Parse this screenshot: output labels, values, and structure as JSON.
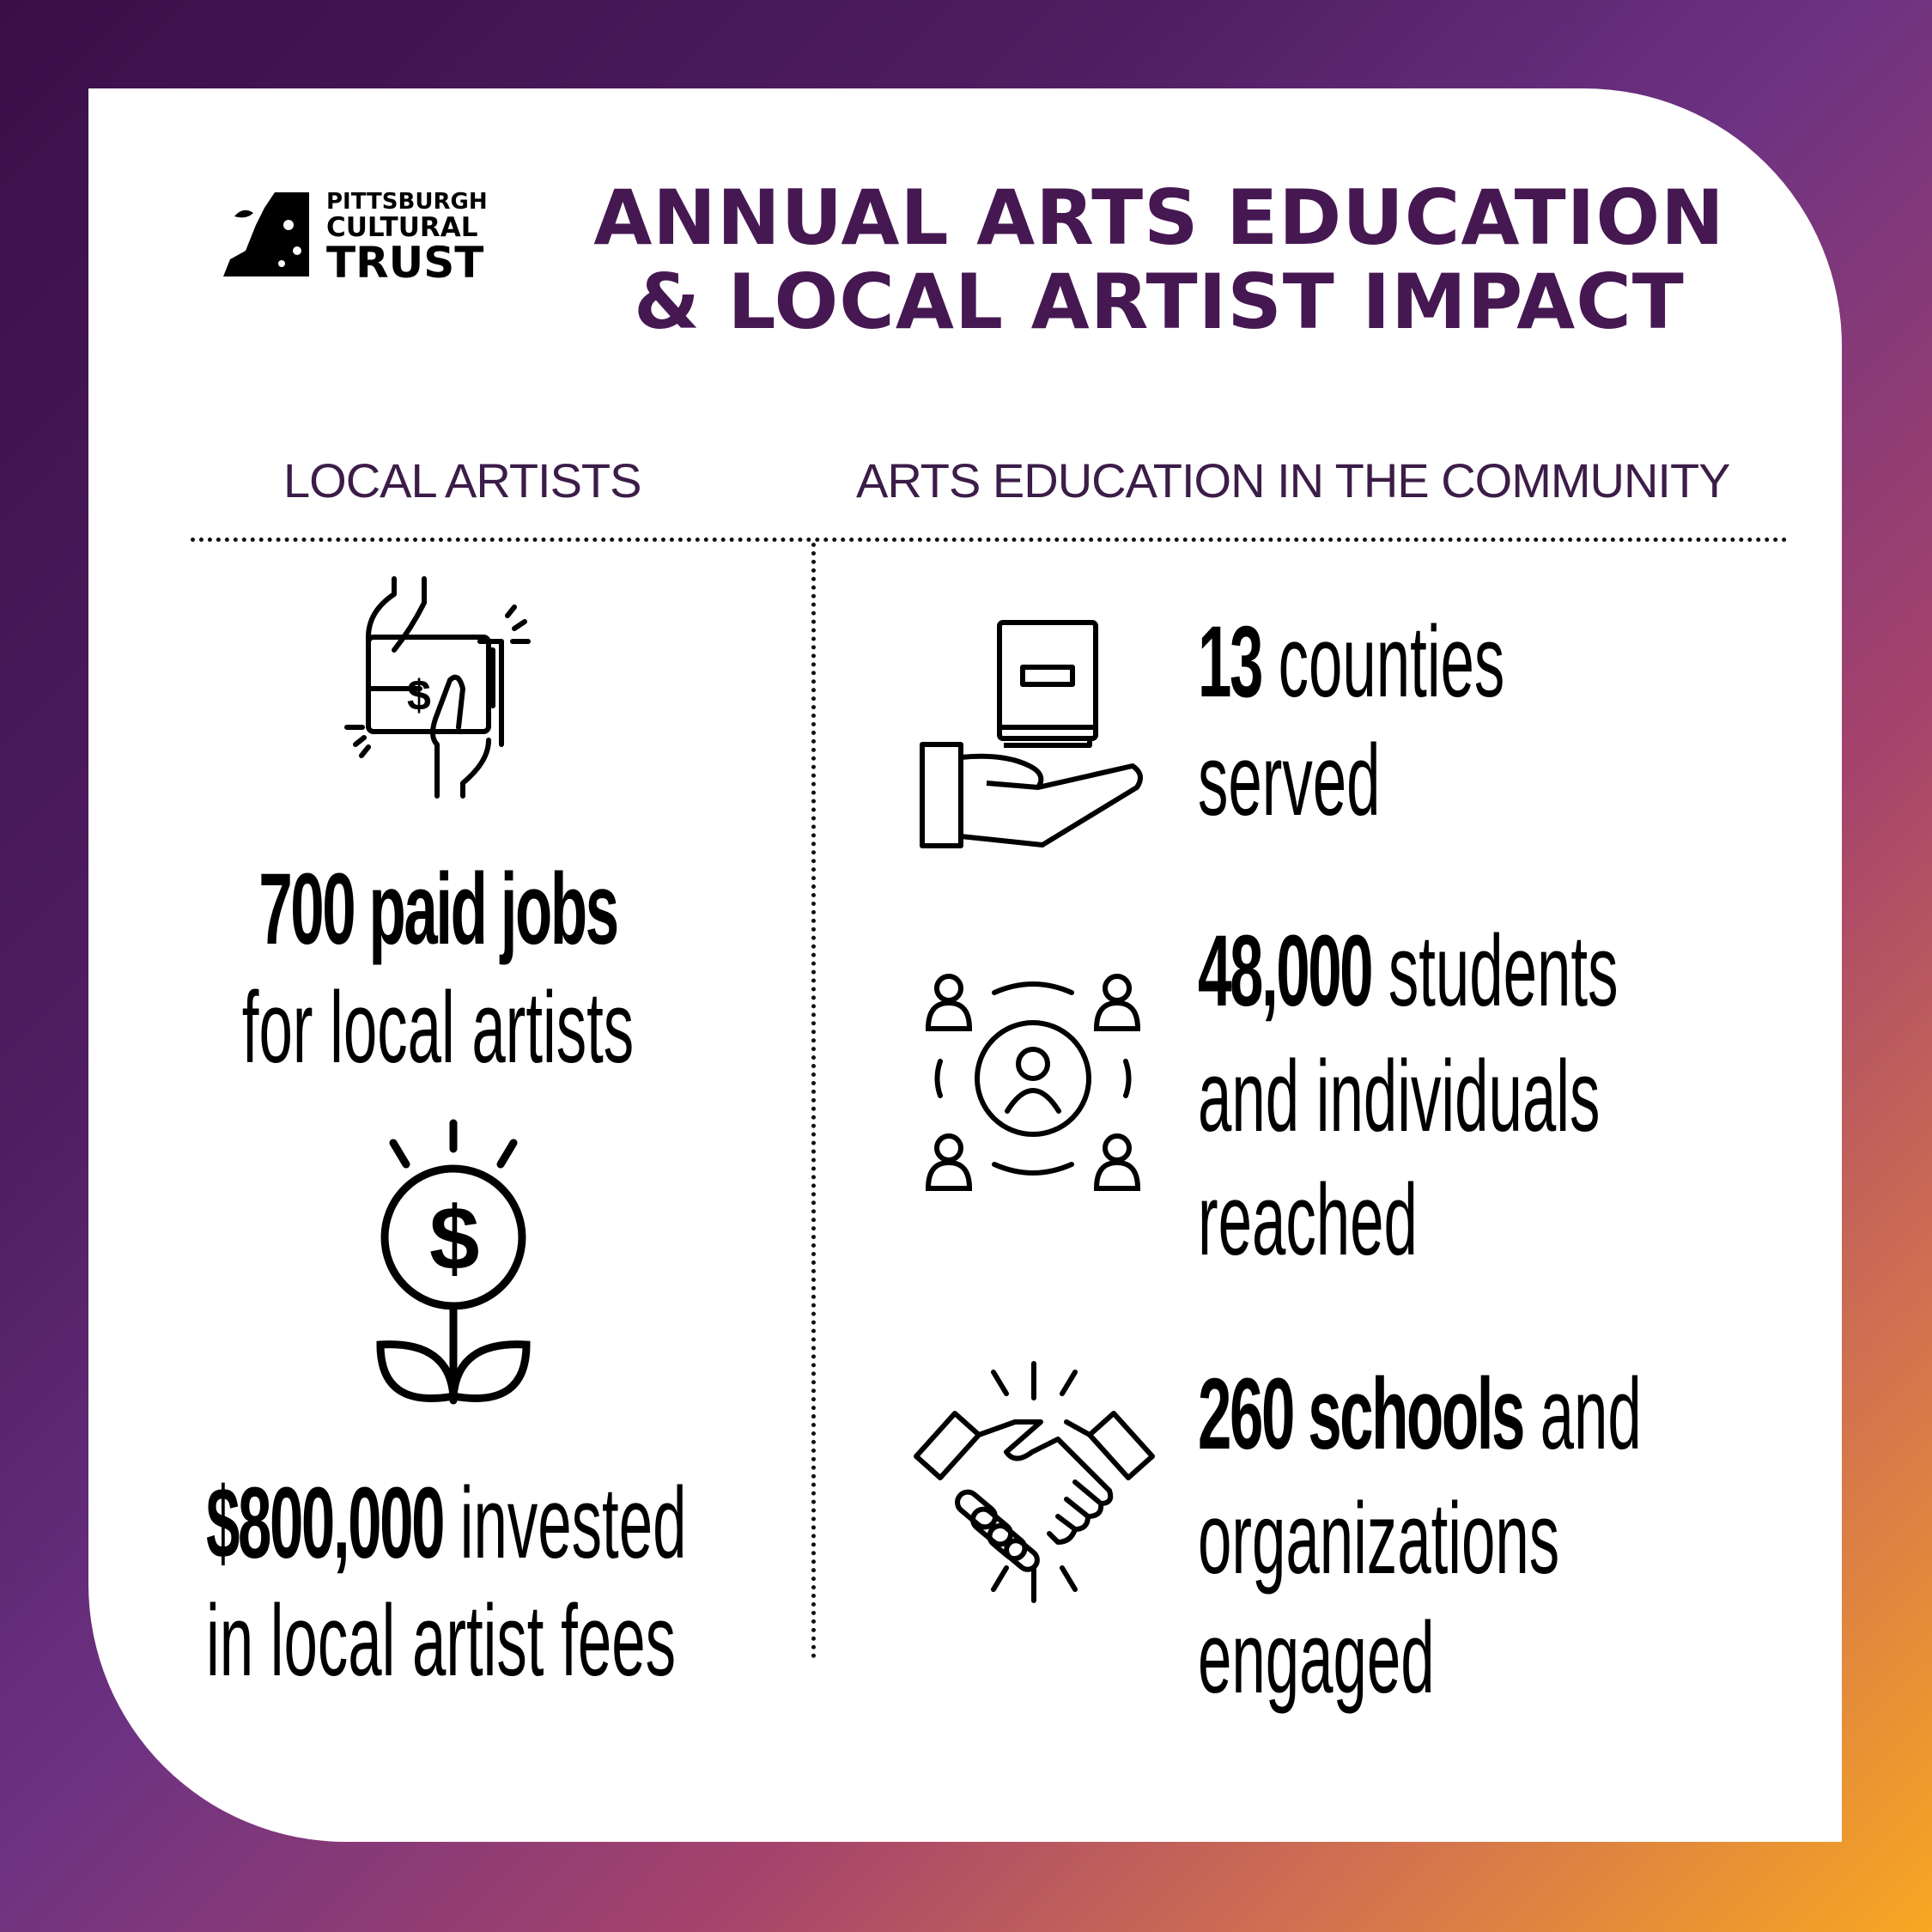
{
  "logo": {
    "line1": "PITTSBURGH",
    "line2": "CULTURAL",
    "line3": "TRUST"
  },
  "title": {
    "line1": "ANNUAL ARTS EDUCATION",
    "line2": "& LOCAL ARTIST IMPACT"
  },
  "sections": {
    "left": "LOCAL ARTISTS",
    "right": "ARTS EDUCATION IN THE COMMUNITY"
  },
  "left": {
    "stat1": {
      "bold": "700 paid jobs",
      "line2": "for local artists",
      "icon": "hands-money-icon"
    },
    "stat2": {
      "bold": "$800,000",
      "rest": " invested",
      "line2": "in local artist fees",
      "icon": "money-plant-icon"
    }
  },
  "right": {
    "stat1": {
      "bold": "13",
      "rest": " counties",
      "line2": "served",
      "icon": "hand-book-icon"
    },
    "stat2": {
      "bold": "48,000",
      "rest": " students",
      "line2": "and individuals",
      "line3": "reached",
      "icon": "people-network-icon"
    },
    "stat3": {
      "bold": "260 schools",
      "rest": " and",
      "line2": "organizations",
      "line3": "engaged",
      "icon": "handshake-icon"
    }
  },
  "colors": {
    "title": "#461852",
    "gradient_start": "#3a0f47",
    "gradient_end": "#f7a822"
  }
}
